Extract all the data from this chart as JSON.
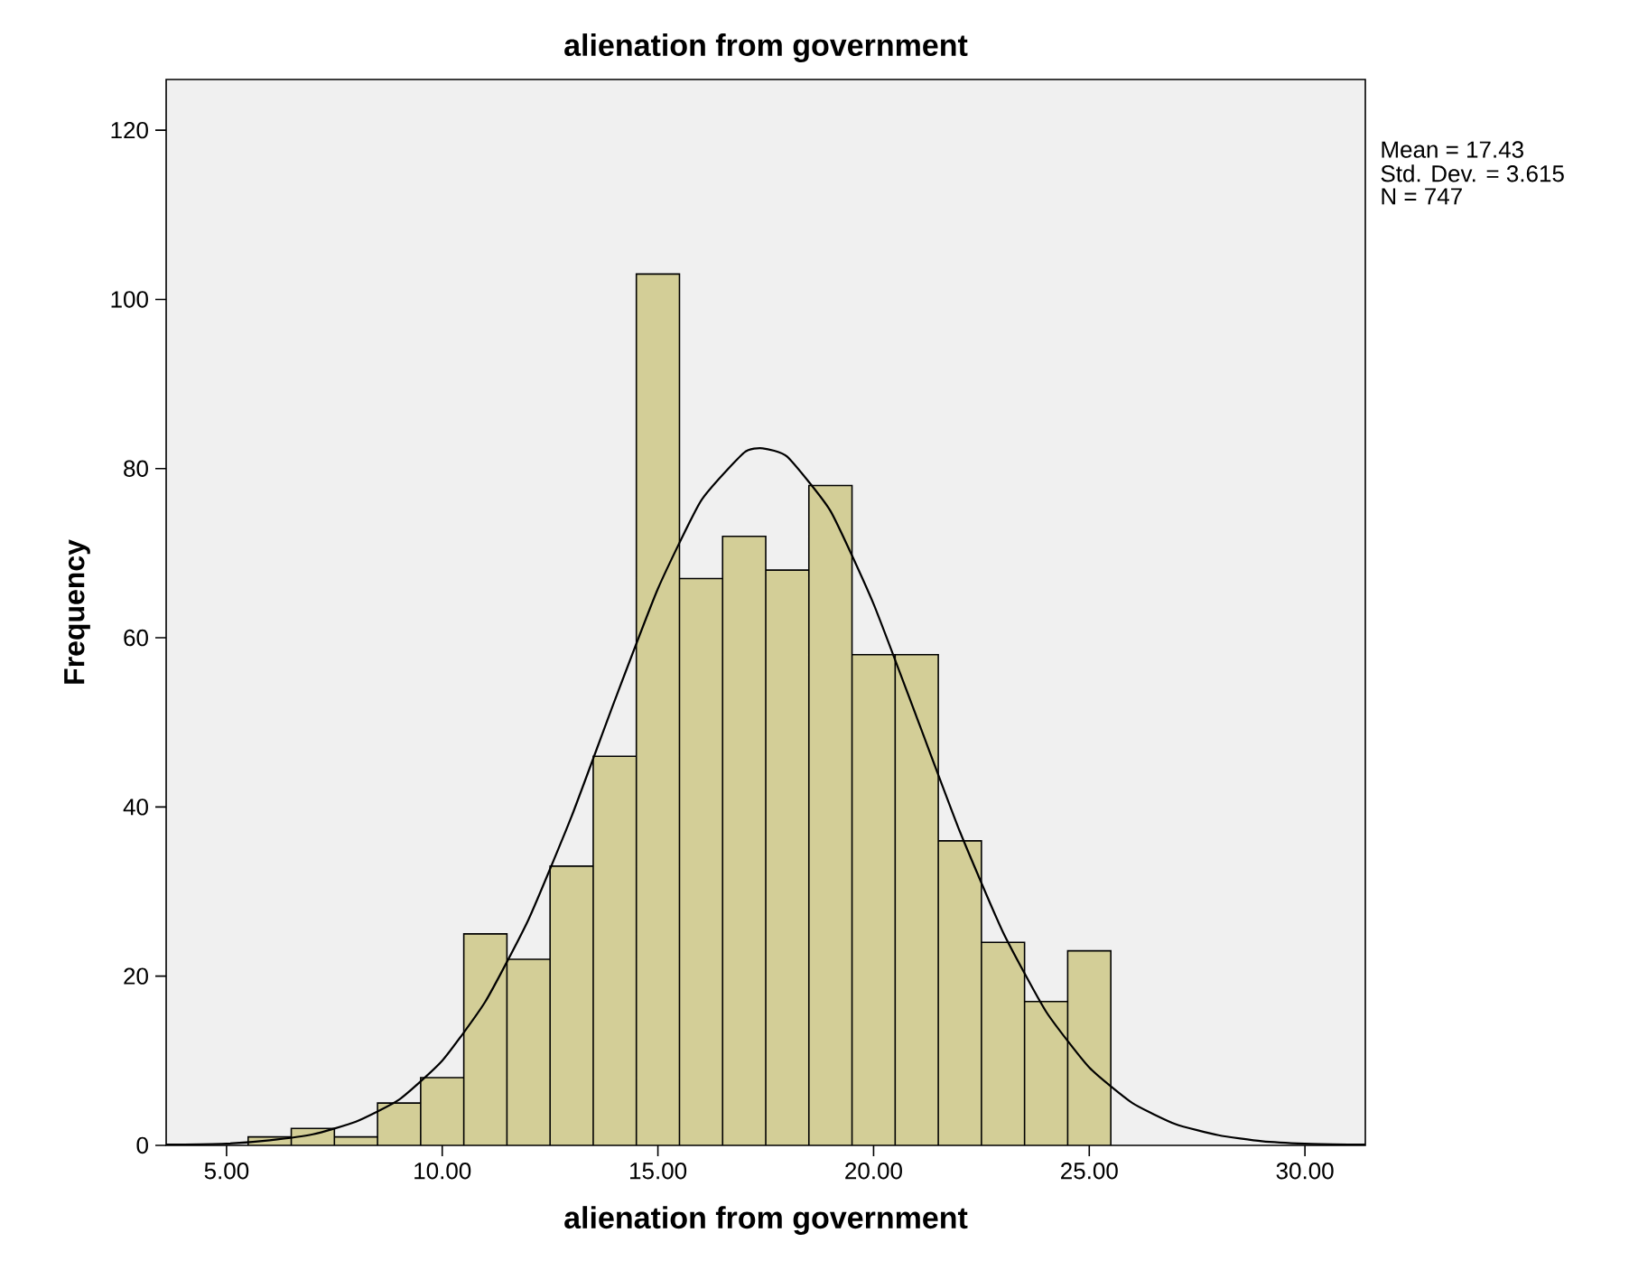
{
  "chart_data": {
    "type": "histogram",
    "title": "alienation from government",
    "xlabel": "alienation from government",
    "ylabel": "Frequency",
    "bins": [
      5.5,
      6.5,
      7.5,
      8.5,
      9.5,
      10.5,
      11.5,
      12.5,
      13.5,
      14.5,
      15.5,
      16.5,
      17.5,
      18.5,
      19.5,
      20.5,
      21.5,
      22.5,
      23.5,
      24.5,
      25.5
    ],
    "values": [
      1,
      2,
      1,
      5,
      8,
      25,
      22,
      33,
      46,
      103,
      67,
      72,
      68,
      78,
      58,
      58,
      36,
      24,
      17,
      23
    ],
    "color": "#d3ce97",
    "series": [
      {
        "type": "line",
        "color": "#000000",
        "x": [
          3.6,
          4,
          5,
          6,
          7,
          8,
          9,
          10,
          11,
          12,
          13,
          14,
          15,
          16,
          17,
          17.43,
          18,
          19,
          20,
          21,
          22,
          23,
          24,
          25,
          26,
          27,
          28,
          29,
          30,
          31,
          31.4
        ],
        "values": [
          0.1,
          0.1,
          0.2,
          0.6,
          1.3,
          2.8,
          5.4,
          10.0,
          17.0,
          26.7,
          38.9,
          52.6,
          65.8,
          76.2,
          81.9,
          82.4,
          81.4,
          75.0,
          64.0,
          50.6,
          37.1,
          25.2,
          15.8,
          9.2,
          5.0,
          2.5,
          1.2,
          0.5,
          0.2,
          0.1,
          0.1
        ]
      }
    ],
    "xlim": [
      3.6,
      31.4
    ],
    "ylim": [
      0,
      126
    ],
    "xticks": [
      {
        "value": 5,
        "label": "5.00"
      },
      {
        "value": 10,
        "label": "10.00"
      },
      {
        "value": 15,
        "label": "15.00"
      },
      {
        "value": 20,
        "label": "20.00"
      },
      {
        "value": 25,
        "label": "25.00"
      },
      {
        "value": 30,
        "label": "30.00"
      }
    ],
    "yticks": [
      0,
      20,
      40,
      60,
      80,
      100,
      120
    ],
    "grid": false,
    "annotations": [
      "Mean = 17.43",
      "Std. Dev. = 3.615",
      "N = 747"
    ]
  }
}
